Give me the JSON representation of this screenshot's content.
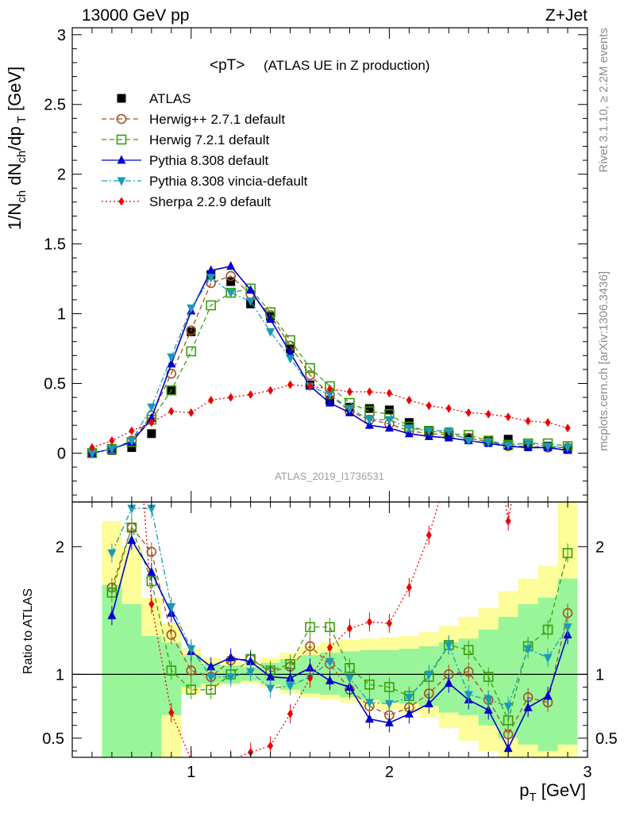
{
  "header": {
    "left": "13000 GeV pp",
    "right": "Z+Jet"
  },
  "side": {
    "rivet": "Rivet 3.1.10, ≥ 2.2M events",
    "mcplots": "mcplots.cern.ch [arXiv:1306.3436]"
  },
  "analysis_id": "ATLAS_2019_I1736531",
  "plot_title_main": "<pT>",
  "plot_title_sub": "(ATLAS UE in Z production)",
  "ratio_label": "Ratio to ATLAS",
  "chart_data": {
    "type": "line",
    "xlabel": "p_T [GeV]",
    "ylabel": "1/N_ch dN_ch/dp_T [GeV]",
    "xlim": [
      0.4,
      3.0
    ],
    "ylim": [
      -0.35,
      3.05
    ],
    "ratio_ylim": [
      0.35,
      2.35
    ],
    "x_ticks": [
      "1",
      "2",
      "3"
    ],
    "y_ticks": [
      "0",
      "0.5",
      "1",
      "1.5",
      "2",
      "2.5",
      "3"
    ],
    "ratio_ticks": [
      "0.5",
      "1",
      "2"
    ],
    "x": [
      0.5,
      0.6,
      0.7,
      0.8,
      0.9,
      1.0,
      1.1,
      1.2,
      1.3,
      1.4,
      1.5,
      1.6,
      1.7,
      1.8,
      1.9,
      2.0,
      2.1,
      2.2,
      2.3,
      2.4,
      2.5,
      2.6,
      2.7,
      2.8,
      2.9
    ],
    "series": [
      {
        "name": "ATLAS",
        "color": "#000000",
        "marker": "square-filled",
        "line": "none",
        "values": [
          0.0,
          0.02,
          0.04,
          0.14,
          0.45,
          0.87,
          1.28,
          1.23,
          1.07,
          0.98,
          0.75,
          0.49,
          0.38,
          0.33,
          0.32,
          0.31,
          0.22,
          0.16,
          0.13,
          0.11,
          0.09,
          0.1,
          0.06,
          0.05,
          0.03
        ]
      },
      {
        "name": "Herwig++ 2.7.1 default",
        "color": "#a0521e",
        "marker": "circle-open",
        "line": "dashed",
        "values": [
          0.0,
          0.03,
          0.09,
          0.27,
          0.57,
          0.88,
          1.22,
          1.27,
          1.14,
          0.99,
          0.77,
          0.56,
          0.42,
          0.3,
          0.24,
          0.21,
          0.16,
          0.14,
          0.13,
          0.11,
          0.08,
          0.05,
          0.05,
          0.04,
          0.04
        ]
      },
      {
        "name": "Herwig 7.2.1 default",
        "color": "#3a9e0a",
        "marker": "square-open",
        "line": "dashed",
        "values": [
          0.0,
          0.03,
          0.08,
          0.24,
          0.45,
          0.73,
          1.06,
          1.15,
          1.18,
          1.01,
          0.81,
          0.61,
          0.48,
          0.36,
          0.3,
          0.28,
          0.19,
          0.16,
          0.14,
          0.13,
          0.09,
          0.06,
          0.07,
          0.07,
          0.05
        ]
      },
      {
        "name": "Pythia 8.308 default",
        "color": "#0000cc",
        "marker": "triangle-up-filled",
        "line": "solid",
        "values": [
          0.0,
          0.03,
          0.08,
          0.25,
          0.64,
          1.02,
          1.31,
          1.34,
          1.17,
          0.96,
          0.72,
          0.48,
          0.36,
          0.29,
          0.2,
          0.18,
          0.14,
          0.12,
          0.11,
          0.09,
          0.07,
          0.05,
          0.04,
          0.04,
          0.02
        ]
      },
      {
        "name": "Pythia 8.308 vincia-default",
        "color": "#1a9ab8",
        "marker": "triangle-down-filled",
        "line": "dashdot",
        "values": [
          0.0,
          0.03,
          0.09,
          0.33,
          0.69,
          1.04,
          1.26,
          1.15,
          1.09,
          0.87,
          0.68,
          0.48,
          0.42,
          0.32,
          0.24,
          0.24,
          0.18,
          0.16,
          0.16,
          0.09,
          0.08,
          0.06,
          0.07,
          0.05,
          0.04
        ]
      },
      {
        "name": "Sherpa 2.2.9 default",
        "color": "#ee0000",
        "marker": "diamond-filled",
        "line": "dotted",
        "values": [
          0.04,
          0.09,
          0.16,
          0.22,
          0.3,
          0.29,
          0.38,
          0.4,
          0.42,
          0.45,
          0.49,
          0.48,
          0.46,
          0.44,
          0.44,
          0.43,
          0.38,
          0.34,
          0.32,
          0.29,
          0.28,
          0.26,
          0.23,
          0.22,
          0.18
        ]
      }
    ],
    "ratio_series": [
      {
        "name": "Herwig++ 2.7.1 default",
        "values": [
          1.68,
          2.15,
          1.96,
          1.31,
          1.03,
          0.98,
          1.11,
          1.12,
          1.02,
          1.06,
          1.22,
          1.08,
          0.88,
          0.75,
          0.68,
          0.74,
          0.85,
          1.0,
          1.02,
          0.8,
          0.53,
          0.82,
          0.78,
          1.48
        ]
      },
      {
        "name": "Herwig 7.2.1 default",
        "values": [
          1.64,
          2.15,
          1.73,
          1.03,
          0.88,
          0.88,
          1.0,
          1.12,
          1.03,
          1.08,
          1.37,
          1.37,
          1.05,
          0.92,
          0.9,
          0.83,
          0.98,
          1.23,
          1.19,
          0.98,
          0.64,
          1.22,
          1.35,
          1.95
        ]
      },
      {
        "name": "Pythia 8.308 default",
        "values": [
          1.46,
          2.05,
          1.8,
          1.48,
          1.18,
          1.06,
          1.13,
          1.1,
          0.98,
          0.97,
          1.05,
          0.95,
          0.9,
          0.65,
          0.62,
          0.69,
          0.77,
          0.93,
          0.8,
          0.72,
          0.42,
          0.74,
          0.83,
          1.31
        ]
      },
      {
        "name": "Pythia 8.308 vincia-default",
        "values": [
          1.95,
          2.3,
          2.3,
          1.53,
          1.2,
          0.98,
          0.98,
          1.02,
          0.89,
          0.91,
          0.98,
          1.1,
          0.97,
          0.78,
          0.77,
          0.82,
          1.0,
          1.23,
          0.84,
          0.8,
          0.75,
          1.2,
          1.13,
          1.37
        ]
      },
      {
        "name": "Sherpa 2.2.9 default",
        "values": [
          4.4,
          3.6,
          1.55,
          0.7,
          0.33,
          0.3,
          0.33,
          0.39,
          0.44,
          0.69,
          0.97,
          1.21,
          1.36,
          1.41,
          1.4,
          1.68,
          2.09,
          2.6,
          2.9,
          3.2,
          2.2,
          3.1,
          3.4,
          4.0
        ]
      }
    ],
    "ratio_x": [
      0.6,
      0.7,
      0.8,
      0.9,
      1.0,
      1.1,
      1.2,
      1.3,
      1.4,
      1.5,
      1.6,
      1.7,
      1.8,
      1.9,
      2.0,
      2.1,
      2.2,
      2.3,
      2.4,
      2.5,
      2.6,
      2.7,
      2.8,
      2.9
    ],
    "uncertainty_bands": {
      "edges": [
        0.55,
        0.65,
        0.75,
        0.85,
        0.95,
        1.05,
        1.15,
        1.25,
        1.35,
        1.45,
        1.55,
        1.65,
        1.75,
        1.85,
        1.95,
        2.05,
        2.15,
        2.25,
        2.35,
        2.45,
        2.55,
        2.65,
        2.75,
        2.85,
        2.95
      ],
      "green_lo": [
        0.35,
        0.35,
        0.35,
        0.68,
        0.9,
        0.93,
        0.93,
        0.95,
        0.92,
        0.88,
        0.85,
        0.84,
        0.82,
        0.8,
        0.78,
        0.77,
        0.75,
        0.7,
        0.68,
        0.6,
        0.5,
        0.45,
        0.4,
        0.45
      ],
      "green_hi": [
        1.7,
        1.55,
        1.3,
        1.25,
        1.15,
        1.08,
        1.07,
        1.06,
        1.09,
        1.12,
        1.15,
        1.17,
        1.18,
        1.19,
        1.19,
        1.2,
        1.22,
        1.25,
        1.28,
        1.35,
        1.45,
        1.55,
        1.6,
        1.75
      ],
      "yellow_lo": [
        0.35,
        0.35,
        0.35,
        0.35,
        0.85,
        0.9,
        0.92,
        0.93,
        0.9,
        0.85,
        0.82,
        0.8,
        0.78,
        0.74,
        0.72,
        0.7,
        0.66,
        0.58,
        0.48,
        0.4,
        0.35,
        0.35,
        0.35,
        0.35
      ],
      "yellow_hi": [
        2.2,
        2.0,
        1.6,
        1.4,
        1.2,
        1.13,
        1.1,
        1.08,
        1.13,
        1.17,
        1.22,
        1.25,
        1.27,
        1.28,
        1.29,
        1.3,
        1.33,
        1.38,
        1.45,
        1.52,
        1.65,
        1.75,
        1.85,
        2.35
      ]
    }
  }
}
